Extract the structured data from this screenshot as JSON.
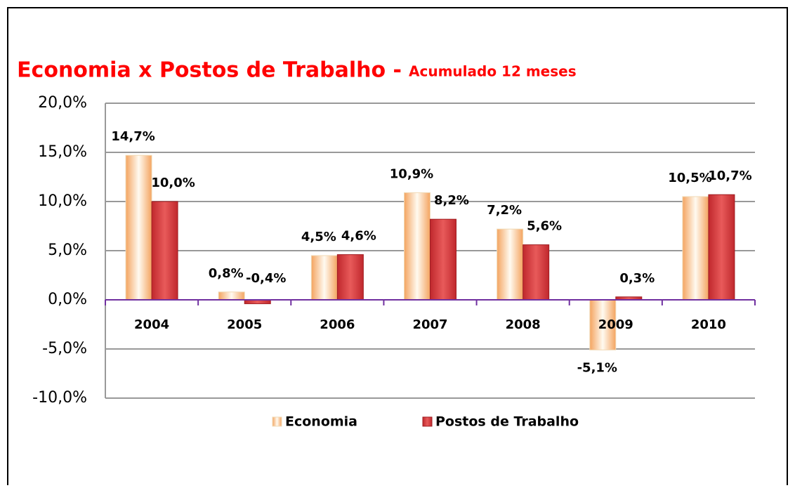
{
  "chart_data": {
    "type": "bar",
    "title": "Economia x Postos de Trabalho -",
    "subtitle": "Acumulado 12 meses",
    "categories": [
      "2004",
      "2005",
      "2006",
      "2007",
      "2008",
      "2009",
      "2010"
    ],
    "series": [
      {
        "name": "Economia",
        "color": "#f4a460",
        "values": [
          14.7,
          0.8,
          4.5,
          10.9,
          7.2,
          -5.1,
          10.5
        ],
        "value_labels": [
          "14,7%",
          "0,8%",
          "4,5%",
          "10,9%",
          "7,2%",
          "-5,1%",
          "10,5%"
        ]
      },
      {
        "name": "Postos de Trabalho",
        "color": "#c0282d",
        "values": [
          10.0,
          -0.4,
          4.6,
          8.2,
          5.6,
          0.3,
          10.7
        ],
        "value_labels": [
          "10,0%",
          "-0,4%",
          "4,6%",
          "8,2%",
          "5,6%",
          "0,3%",
          "10,7%"
        ]
      }
    ],
    "ylim": [
      -10,
      20
    ],
    "yticks": [
      {
        "value": -10,
        "label": "-10,0%"
      },
      {
        "value": -5,
        "label": "-5,0%"
      },
      {
        "value": 0,
        "label": "0,0%"
      },
      {
        "value": 5,
        "label": "5,0%"
      },
      {
        "value": 10,
        "label": "10,0%"
      },
      {
        "value": 15,
        "label": "15,0%"
      },
      {
        "value": 20,
        "label": "20,0%"
      }
    ],
    "grid": true,
    "legend": "bottom"
  }
}
